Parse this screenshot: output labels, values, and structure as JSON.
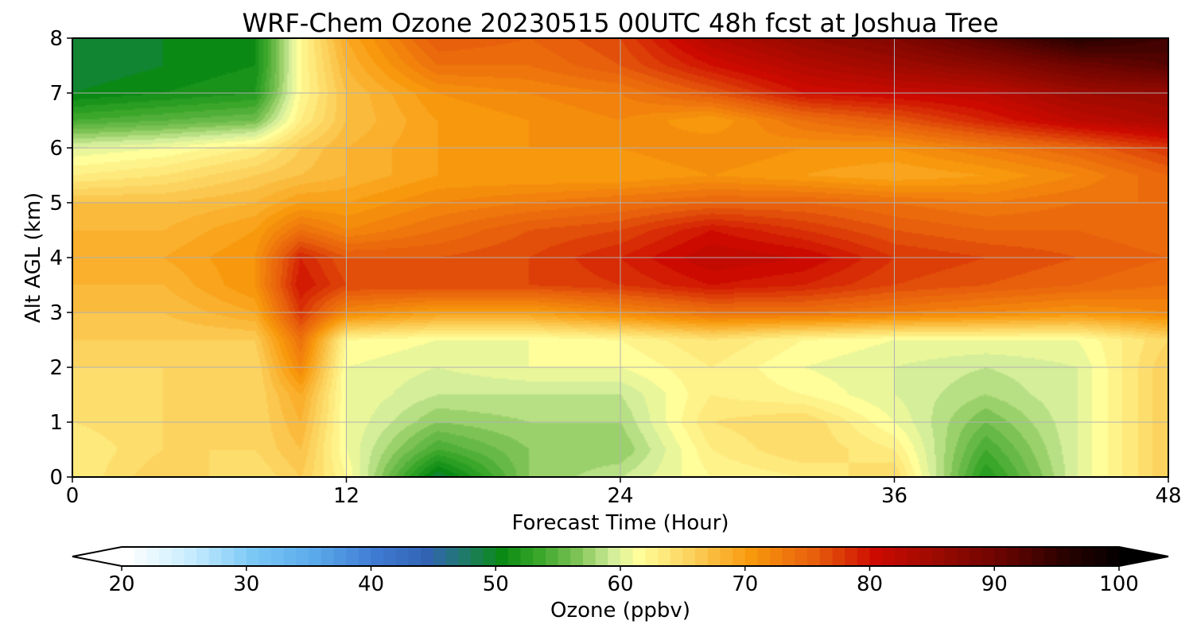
{
  "chart_data": {
    "type": "heatmap",
    "title": "WRF-Chem Ozone  20230515 00UTC 48h fcst at Joshua Tree",
    "xlabel": "Forecast Time (Hour)",
    "ylabel": "Alt AGL (km)",
    "xlim": [
      0,
      48
    ],
    "ylim": [
      0,
      8
    ],
    "x_ticks": [
      0,
      12,
      24,
      36,
      48
    ],
    "y_ticks": [
      0,
      1,
      2,
      3,
      4,
      5,
      6,
      7,
      8
    ],
    "grid": true,
    "x": [
      0,
      4,
      8,
      10,
      12,
      16,
      20,
      24,
      28,
      32,
      36,
      40,
      44,
      48
    ],
    "y": [
      0,
      0.5,
      1,
      1.5,
      2,
      2.5,
      3,
      3.5,
      4,
      4.5,
      5,
      5.5,
      6,
      6.5,
      7,
      7.5,
      8
    ],
    "z": [
      [
        63,
        66,
        64,
        66,
        62,
        49,
        57,
        59,
        62,
        63,
        65,
        52,
        60,
        66
      ],
      [
        63,
        65,
        65,
        67,
        61,
        54,
        57,
        57,
        63,
        65,
        63,
        54,
        60,
        66
      ],
      [
        64,
        65,
        65,
        68,
        61,
        57,
        58,
        58,
        64,
        65,
        61,
        56,
        60,
        66
      ],
      [
        64,
        65,
        65,
        69,
        61,
        59,
        59,
        59,
        63,
        62,
        60,
        58,
        60,
        66
      ],
      [
        65,
        65,
        65,
        72,
        61,
        60,
        61,
        61,
        63,
        61,
        60,
        59,
        60,
        66
      ],
      [
        66,
        66,
        66,
        74,
        62,
        61,
        61,
        62,
        64,
        62,
        61,
        61,
        61,
        65
      ],
      [
        67,
        67,
        69,
        78,
        72,
        70,
        70,
        72,
        74,
        74,
        73,
        72,
        71,
        72
      ],
      [
        68,
        68,
        71,
        80,
        77,
        77,
        77,
        78,
        80,
        79,
        77,
        76,
        75,
        74
      ],
      [
        69,
        69,
        71,
        79,
        76,
        76,
        77,
        79,
        82,
        81,
        78,
        77,
        76,
        75
      ],
      [
        68,
        68,
        70,
        74,
        72,
        74,
        76,
        77,
        80,
        78,
        76,
        75,
        75,
        74
      ],
      [
        67,
        67,
        68,
        70,
        70,
        72,
        73,
        74,
        75,
        75,
        74,
        73,
        74,
        74
      ],
      [
        63,
        64,
        66,
        67,
        68,
        70,
        70,
        70,
        71,
        70,
        69,
        70,
        72,
        75
      ],
      [
        60,
        61,
        63,
        66,
        68,
        70,
        71,
        71,
        72,
        71,
        71,
        73,
        75,
        78
      ],
      [
        54,
        55,
        56,
        63,
        67,
        70,
        71,
        72,
        70,
        74,
        76,
        79,
        82,
        84
      ],
      [
        50,
        51,
        52,
        62,
        67,
        71,
        72,
        73,
        76,
        80,
        81,
        82,
        85,
        86
      ],
      [
        49,
        50,
        51,
        62,
        68,
        74,
        74,
        76,
        80,
        83,
        85,
        87,
        90,
        92
      ],
      [
        49,
        50,
        51,
        62,
        69,
        76,
        75,
        77,
        83,
        86,
        88,
        92,
        96,
        94
      ]
    ],
    "colorbar": {
      "label": "Ozone  (ppbv)",
      "vmin": 20,
      "vmax": 100,
      "ticks": [
        20,
        30,
        40,
        50,
        60,
        70,
        80,
        90,
        100
      ],
      "extend": "both",
      "stops": [
        {
          "v": 20,
          "c": "#ffffff"
        },
        {
          "v": 25,
          "c": "#c8ecff"
        },
        {
          "v": 30,
          "c": "#7bc8f5"
        },
        {
          "v": 35,
          "c": "#5aa9ea"
        },
        {
          "v": 40,
          "c": "#3f7ad2"
        },
        {
          "v": 44,
          "c": "#3263b3"
        },
        {
          "v": 47,
          "c": "#1f7a6a"
        },
        {
          "v": 50,
          "c": "#0a8a14"
        },
        {
          "v": 53,
          "c": "#3aa62a"
        },
        {
          "v": 56,
          "c": "#7cc254"
        },
        {
          "v": 59,
          "c": "#d5ee9a"
        },
        {
          "v": 61,
          "c": "#fffe9a"
        },
        {
          "v": 65,
          "c": "#fcd35e"
        },
        {
          "v": 70,
          "c": "#f8980c"
        },
        {
          "v": 75,
          "c": "#e8600c"
        },
        {
          "v": 80,
          "c": "#cc0a00"
        },
        {
          "v": 85,
          "c": "#9a0a00"
        },
        {
          "v": 90,
          "c": "#6a0400"
        },
        {
          "v": 95,
          "c": "#2a0200"
        },
        {
          "v": 100,
          "c": "#000000"
        }
      ],
      "under_color": "#ffffff",
      "over_color": "#000000"
    }
  }
}
